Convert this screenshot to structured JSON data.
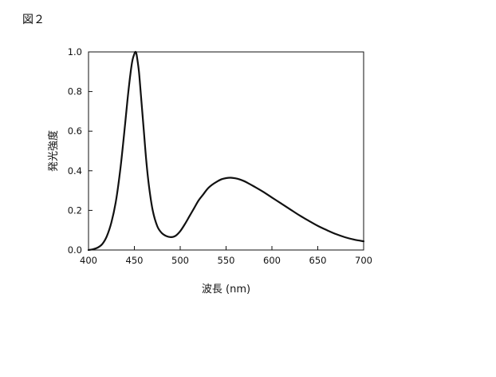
{
  "figure_label": "図２",
  "chart_data": {
    "type": "line",
    "title": "",
    "xlabel": "波長 (nm)",
    "ylabel": "発光強度",
    "xlim": [
      400,
      700
    ],
    "ylim": [
      0,
      1.0
    ],
    "xticks": [
      400,
      450,
      500,
      550,
      600,
      650,
      700
    ],
    "yticks": [
      0.0,
      0.2,
      0.4,
      0.6,
      0.8,
      1.0
    ],
    "ytick_labels": [
      "0.0",
      "0.2",
      "0.4",
      "0.6",
      "0.8",
      "1.0"
    ],
    "grid": false,
    "legend": "none",
    "color": "#111111",
    "series": [
      {
        "x": [
          400,
          405,
          410,
          415,
          420,
          425,
          430,
          435,
          440,
          443,
          446,
          448,
          450,
          451,
          452,
          453,
          455,
          457,
          460,
          463,
          466,
          470,
          475,
          480,
          485,
          490,
          495,
          500,
          505,
          510,
          515,
          520,
          525,
          530,
          535,
          540,
          545,
          550,
          555,
          560,
          565,
          570,
          575,
          580,
          590,
          600,
          610,
          620,
          630,
          640,
          650,
          660,
          670,
          680,
          690,
          700
        ],
        "y": [
          0.0,
          0.004,
          0.012,
          0.03,
          0.07,
          0.14,
          0.25,
          0.42,
          0.64,
          0.78,
          0.9,
          0.96,
          0.99,
          1.0,
          0.995,
          0.97,
          0.9,
          0.79,
          0.62,
          0.45,
          0.32,
          0.2,
          0.12,
          0.085,
          0.07,
          0.065,
          0.072,
          0.095,
          0.13,
          0.17,
          0.21,
          0.25,
          0.28,
          0.31,
          0.33,
          0.345,
          0.357,
          0.363,
          0.365,
          0.362,
          0.356,
          0.347,
          0.335,
          0.322,
          0.295,
          0.265,
          0.235,
          0.205,
          0.175,
          0.148,
          0.122,
          0.1,
          0.08,
          0.064,
          0.052,
          0.044
        ]
      }
    ]
  }
}
